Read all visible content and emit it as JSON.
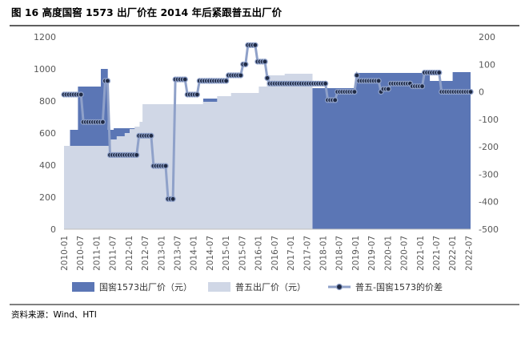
{
  "figure_title": "图 16 高度国窖 1573 出厂价在 2014 年后紧跟普五出厂价",
  "source": "资料来源：Wind、HTI",
  "colors": {
    "guojiao": "#5B76B5",
    "puwu": "#D0D7E6",
    "diff_line": "#8FA1C9",
    "diff_marker_fill": "#1F2A44",
    "axis_text": "#595959",
    "rule": "#000000"
  },
  "chart_data": {
    "type": "area",
    "x_ticks": [
      "2010-01",
      "2010-07",
      "2011-01",
      "2011-07",
      "2012-01",
      "2012-07",
      "2013-01",
      "2013-07",
      "2014-01",
      "2014-07",
      "2015-01",
      "2015-07",
      "2016-01",
      "2016-07",
      "2017-01",
      "2017-07",
      "2018-01",
      "2018-07",
      "2019-01",
      "2019-07",
      "2020-01",
      "2020-07",
      "2021-01",
      "2021-07",
      "2022-01",
      "2022-07"
    ],
    "y_left": {
      "min": 0,
      "max": 1200,
      "ticks": [
        0,
        200,
        400,
        600,
        800,
        1000,
        1200
      ]
    },
    "y_right": {
      "min": -500,
      "max": 200,
      "ticks": [
        -500,
        -400,
        -300,
        -200,
        -100,
        0,
        100,
        200
      ]
    },
    "series": [
      {
        "name": "国窖1573出厂价（元）",
        "kind": "area",
        "axis": "left",
        "color": "#5B76B5",
        "points": [
          [
            0,
            520
          ],
          [
            6,
            520
          ],
          [
            6,
            620
          ],
          [
            14,
            620
          ],
          [
            14,
            890
          ],
          [
            37,
            890
          ],
          [
            37,
            1000
          ],
          [
            44,
            1000
          ],
          [
            44,
            620
          ],
          [
            50,
            620
          ],
          [
            50,
            630
          ],
          [
            140,
            630
          ],
          [
            140,
            815
          ],
          [
            220,
            815
          ],
          [
            220,
            915
          ],
          [
            243,
            915
          ],
          [
            243,
            880
          ],
          [
            293,
            880
          ],
          [
            293,
            975
          ],
          [
            349,
            975
          ],
          [
            349,
            975
          ],
          [
            368,
            975
          ],
          [
            368,
            925
          ],
          [
            391,
            925
          ],
          [
            391,
            980
          ],
          [
            409,
            980
          ],
          [
            409,
            970
          ]
        ]
      },
      {
        "name": "普五出厂价（元）",
        "kind": "area",
        "axis": "left",
        "color": "#D0D7E6",
        "points": [
          [
            0,
            520
          ],
          [
            13,
            520
          ],
          [
            13,
            520
          ],
          [
            47,
            520
          ],
          [
            47,
            560
          ],
          [
            53,
            560
          ],
          [
            53,
            580
          ],
          [
            58,
            580
          ],
          [
            58,
            580
          ],
          [
            61,
            580
          ],
          [
            61,
            600
          ],
          [
            66,
            600
          ],
          [
            66,
            625
          ],
          [
            71,
            625
          ],
          [
            71,
            640
          ],
          [
            76,
            640
          ],
          [
            76,
            670
          ],
          [
            79,
            670
          ],
          [
            79,
            780
          ],
          [
            126,
            780
          ],
          [
            126,
            780
          ],
          [
            138,
            780
          ],
          [
            138,
            780
          ],
          [
            140,
            780
          ],
          [
            140,
            795
          ],
          [
            154,
            795
          ],
          [
            154,
            830
          ],
          [
            168,
            830
          ],
          [
            168,
            850
          ],
          [
            196,
            850
          ],
          [
            196,
            890
          ],
          [
            204,
            890
          ],
          [
            204,
            960
          ],
          [
            222,
            960
          ],
          [
            222,
            970
          ],
          [
            234,
            970
          ],
          [
            234,
            970
          ],
          [
            250,
            970
          ]
        ]
      },
      {
        "name": "普五-国窖1573的价差",
        "kind": "line",
        "axis": "right",
        "color": "#8FA1C9",
        "points": [
          [
            0,
            -10
          ],
          [
            7,
            -10
          ],
          [
            8,
            -110
          ],
          [
            16,
            -110
          ],
          [
            17,
            40
          ],
          [
            18,
            40
          ],
          [
            19,
            -230
          ],
          [
            30,
            -230
          ],
          [
            31,
            -160
          ],
          [
            36,
            -160
          ],
          [
            37,
            -270
          ],
          [
            42,
            -270
          ],
          [
            43,
            -390
          ],
          [
            45,
            -390
          ],
          [
            46,
            45
          ],
          [
            50,
            45
          ],
          [
            51,
            -10
          ],
          [
            55,
            -10
          ],
          [
            56,
            40
          ],
          [
            60,
            40
          ],
          [
            61,
            40
          ],
          [
            67,
            40
          ],
          [
            68,
            60
          ],
          [
            73,
            60
          ],
          [
            74,
            100
          ],
          [
            75,
            100
          ],
          [
            76,
            170
          ],
          [
            79,
            170
          ],
          [
            80,
            110
          ],
          [
            83,
            110
          ],
          [
            84,
            50
          ],
          [
            85,
            30
          ],
          [
            86,
            30
          ],
          [
            87,
            30
          ],
          [
            108,
            30
          ],
          [
            109,
            -30
          ],
          [
            112,
            -30
          ],
          [
            113,
            0
          ],
          [
            120,
            0
          ],
          [
            121,
            60
          ],
          [
            122,
            40
          ],
          [
            130,
            40
          ],
          [
            131,
            0
          ],
          [
            132,
            10
          ],
          [
            134,
            10
          ],
          [
            135,
            30
          ],
          [
            143,
            30
          ],
          [
            144,
            20
          ],
          [
            148,
            20
          ],
          [
            149,
            70
          ],
          [
            155,
            70
          ],
          [
            156,
            0
          ],
          [
            168,
            0
          ]
        ]
      }
    ],
    "diff_x_scale": 168,
    "area_x_scale": 409,
    "legend": {
      "position": "bottom",
      "items": [
        "国窖1573出厂价（元）",
        "普五出厂价（元）",
        "普五-国窖1573的价差"
      ]
    }
  }
}
